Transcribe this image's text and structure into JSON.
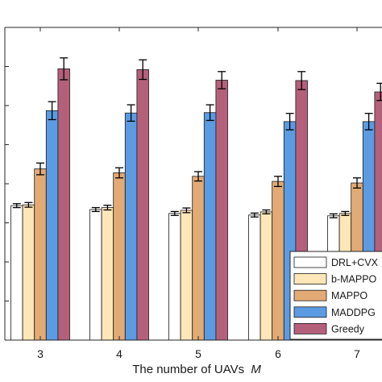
{
  "chart_data": {
    "type": "bar",
    "title": "",
    "xlabel": "The number of UAVs",
    "xlabel_symbol": "M",
    "ylabel": "",
    "categories": [
      "3",
      "4",
      "5",
      "6",
      "7"
    ],
    "ylim": [
      0,
      8
    ],
    "grid": false,
    "legend_position": "bottom-right",
    "error_bars": true,
    "series": [
      {
        "name": "DRL+CVX",
        "color": "#ffffff",
        "values": [
          3.44,
          3.34,
          3.24,
          3.2,
          3.18
        ],
        "errors": [
          0.05,
          0.05,
          0.05,
          0.05,
          0.05
        ]
      },
      {
        "name": "b-MAPPO",
        "color": "#fde7b8",
        "values": [
          3.46,
          3.39,
          3.32,
          3.28,
          3.24
        ],
        "errors": [
          0.06,
          0.06,
          0.06,
          0.05,
          0.05
        ]
      },
      {
        "name": "MAPPO",
        "color": "#e2aa74",
        "values": [
          4.38,
          4.28,
          4.19,
          4.06,
          4.02
        ],
        "errors": [
          0.15,
          0.13,
          0.12,
          0.13,
          0.13
        ]
      },
      {
        "name": "MADDPG",
        "color": "#5b9be2",
        "values": [
          5.87,
          5.81,
          5.82,
          5.59,
          5.59
        ],
        "errors": [
          0.23,
          0.21,
          0.2,
          0.21,
          0.21
        ]
      },
      {
        "name": "Greedy",
        "color": "#b5607b",
        "values": [
          6.94,
          6.92,
          6.65,
          6.64,
          6.35
        ],
        "errors": [
          0.28,
          0.25,
          0.22,
          0.23,
          0.22
        ]
      }
    ]
  }
}
